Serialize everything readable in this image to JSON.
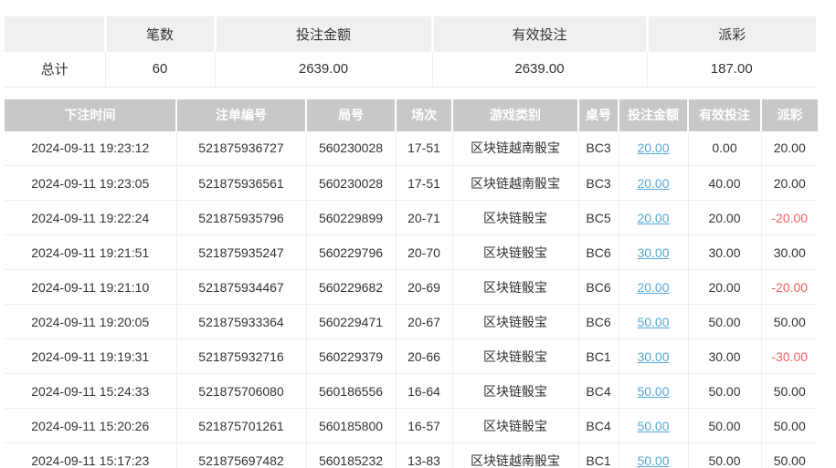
{
  "colors": {
    "table_header_bg": "#c8c8c8",
    "summary_header_bg": "#f0f0f0",
    "link_blue": "#55a7da",
    "negative_red": "#f25f5f",
    "text": "#333333"
  },
  "summary": {
    "headers": [
      "",
      "笔数",
      "投注金额",
      "有效投注",
      "派彩"
    ],
    "total_row": {
      "label": "总计",
      "count": "60",
      "bet_amount": "2639.00",
      "valid_bet": "2639.00",
      "payout": "187.00"
    }
  },
  "bets": {
    "headers": [
      "下注时间",
      "注单编号",
      "局号",
      "场次",
      "游戏类别",
      "桌号",
      "投注金额",
      "有效投注",
      "派彩"
    ],
    "rows": [
      {
        "time": "2024-09-11 19:23:12",
        "order_no": "521875936727",
        "round_no": "560230028",
        "session": "17-51",
        "game": "区块链越南骰宝",
        "table_no": "BC3",
        "bet_amount": "20.00",
        "valid_bet": "0.00",
        "payout": "20.00"
      },
      {
        "time": "2024-09-11 19:23:05",
        "order_no": "521875936561",
        "round_no": "560230028",
        "session": "17-51",
        "game": "区块链越南骰宝",
        "table_no": "BC3",
        "bet_amount": "20.00",
        "valid_bet": "40.00",
        "payout": "20.00"
      },
      {
        "time": "2024-09-11 19:22:24",
        "order_no": "521875935796",
        "round_no": "560229899",
        "session": "20-71",
        "game": "区块链骰宝",
        "table_no": "BC5",
        "bet_amount": "20.00",
        "valid_bet": "20.00",
        "payout": "-20.00"
      },
      {
        "time": "2024-09-11 19:21:51",
        "order_no": "521875935247",
        "round_no": "560229796",
        "session": "20-70",
        "game": "区块链骰宝",
        "table_no": "BC6",
        "bet_amount": "30.00",
        "valid_bet": "30.00",
        "payout": "30.00"
      },
      {
        "time": "2024-09-11 19:21:10",
        "order_no": "521875934467",
        "round_no": "560229682",
        "session": "20-69",
        "game": "区块链骰宝",
        "table_no": "BC6",
        "bet_amount": "20.00",
        "valid_bet": "20.00",
        "payout": "-20.00"
      },
      {
        "time": "2024-09-11 19:20:05",
        "order_no": "521875933364",
        "round_no": "560229471",
        "session": "20-67",
        "game": "区块链骰宝",
        "table_no": "BC6",
        "bet_amount": "50.00",
        "valid_bet": "50.00",
        "payout": "50.00"
      },
      {
        "time": "2024-09-11 19:19:31",
        "order_no": "521875932716",
        "round_no": "560229379",
        "session": "20-66",
        "game": "区块链骰宝",
        "table_no": "BC1",
        "bet_amount": "30.00",
        "valid_bet": "30.00",
        "payout": "-30.00"
      },
      {
        "time": "2024-09-11 15:24:33",
        "order_no": "521875706080",
        "round_no": "560186556",
        "session": "16-64",
        "game": "区块链骰宝",
        "table_no": "BC4",
        "bet_amount": "50.00",
        "valid_bet": "50.00",
        "payout": "50.00"
      },
      {
        "time": "2024-09-11 15:20:26",
        "order_no": "521875701261",
        "round_no": "560185800",
        "session": "16-57",
        "game": "区块链骰宝",
        "table_no": "BC4",
        "bet_amount": "50.00",
        "valid_bet": "50.00",
        "payout": "50.00"
      },
      {
        "time": "2024-09-11 15:17:23",
        "order_no": "521875697482",
        "round_no": "560185232",
        "session": "13-83",
        "game": "区块链越南骰宝",
        "table_no": "BC1",
        "bet_amount": "50.00",
        "valid_bet": "50.00",
        "payout": "50.00"
      }
    ]
  }
}
